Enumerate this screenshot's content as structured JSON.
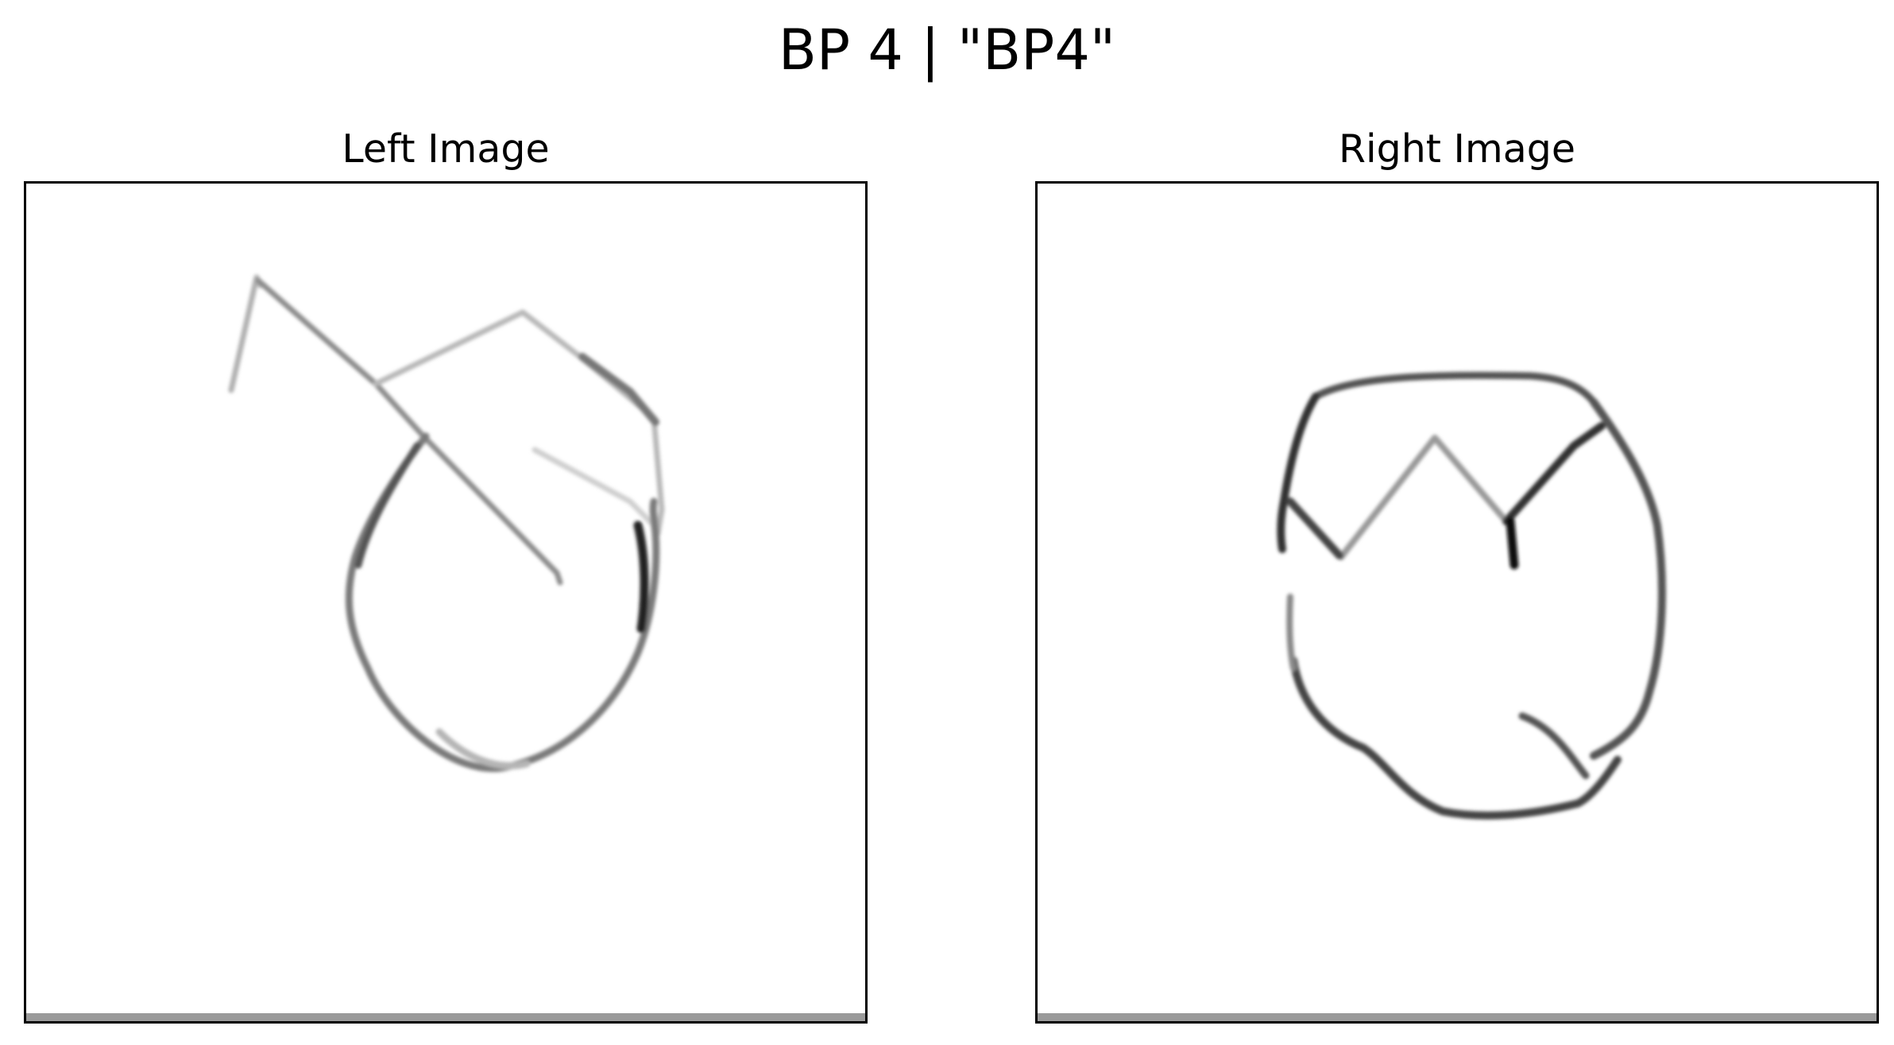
{
  "figure": {
    "title": "BP 4 | \"BP4\""
  },
  "panels": [
    {
      "title": "Left Image",
      "image": "hand-drawn-sketch"
    },
    {
      "title": "Right Image",
      "image": "hand-drawn-sketch"
    }
  ],
  "colors": {
    "stroke_dark": "#111111",
    "stroke_mid": "#555555",
    "stroke_light": "#9a9a9a",
    "background": "#ffffff"
  }
}
